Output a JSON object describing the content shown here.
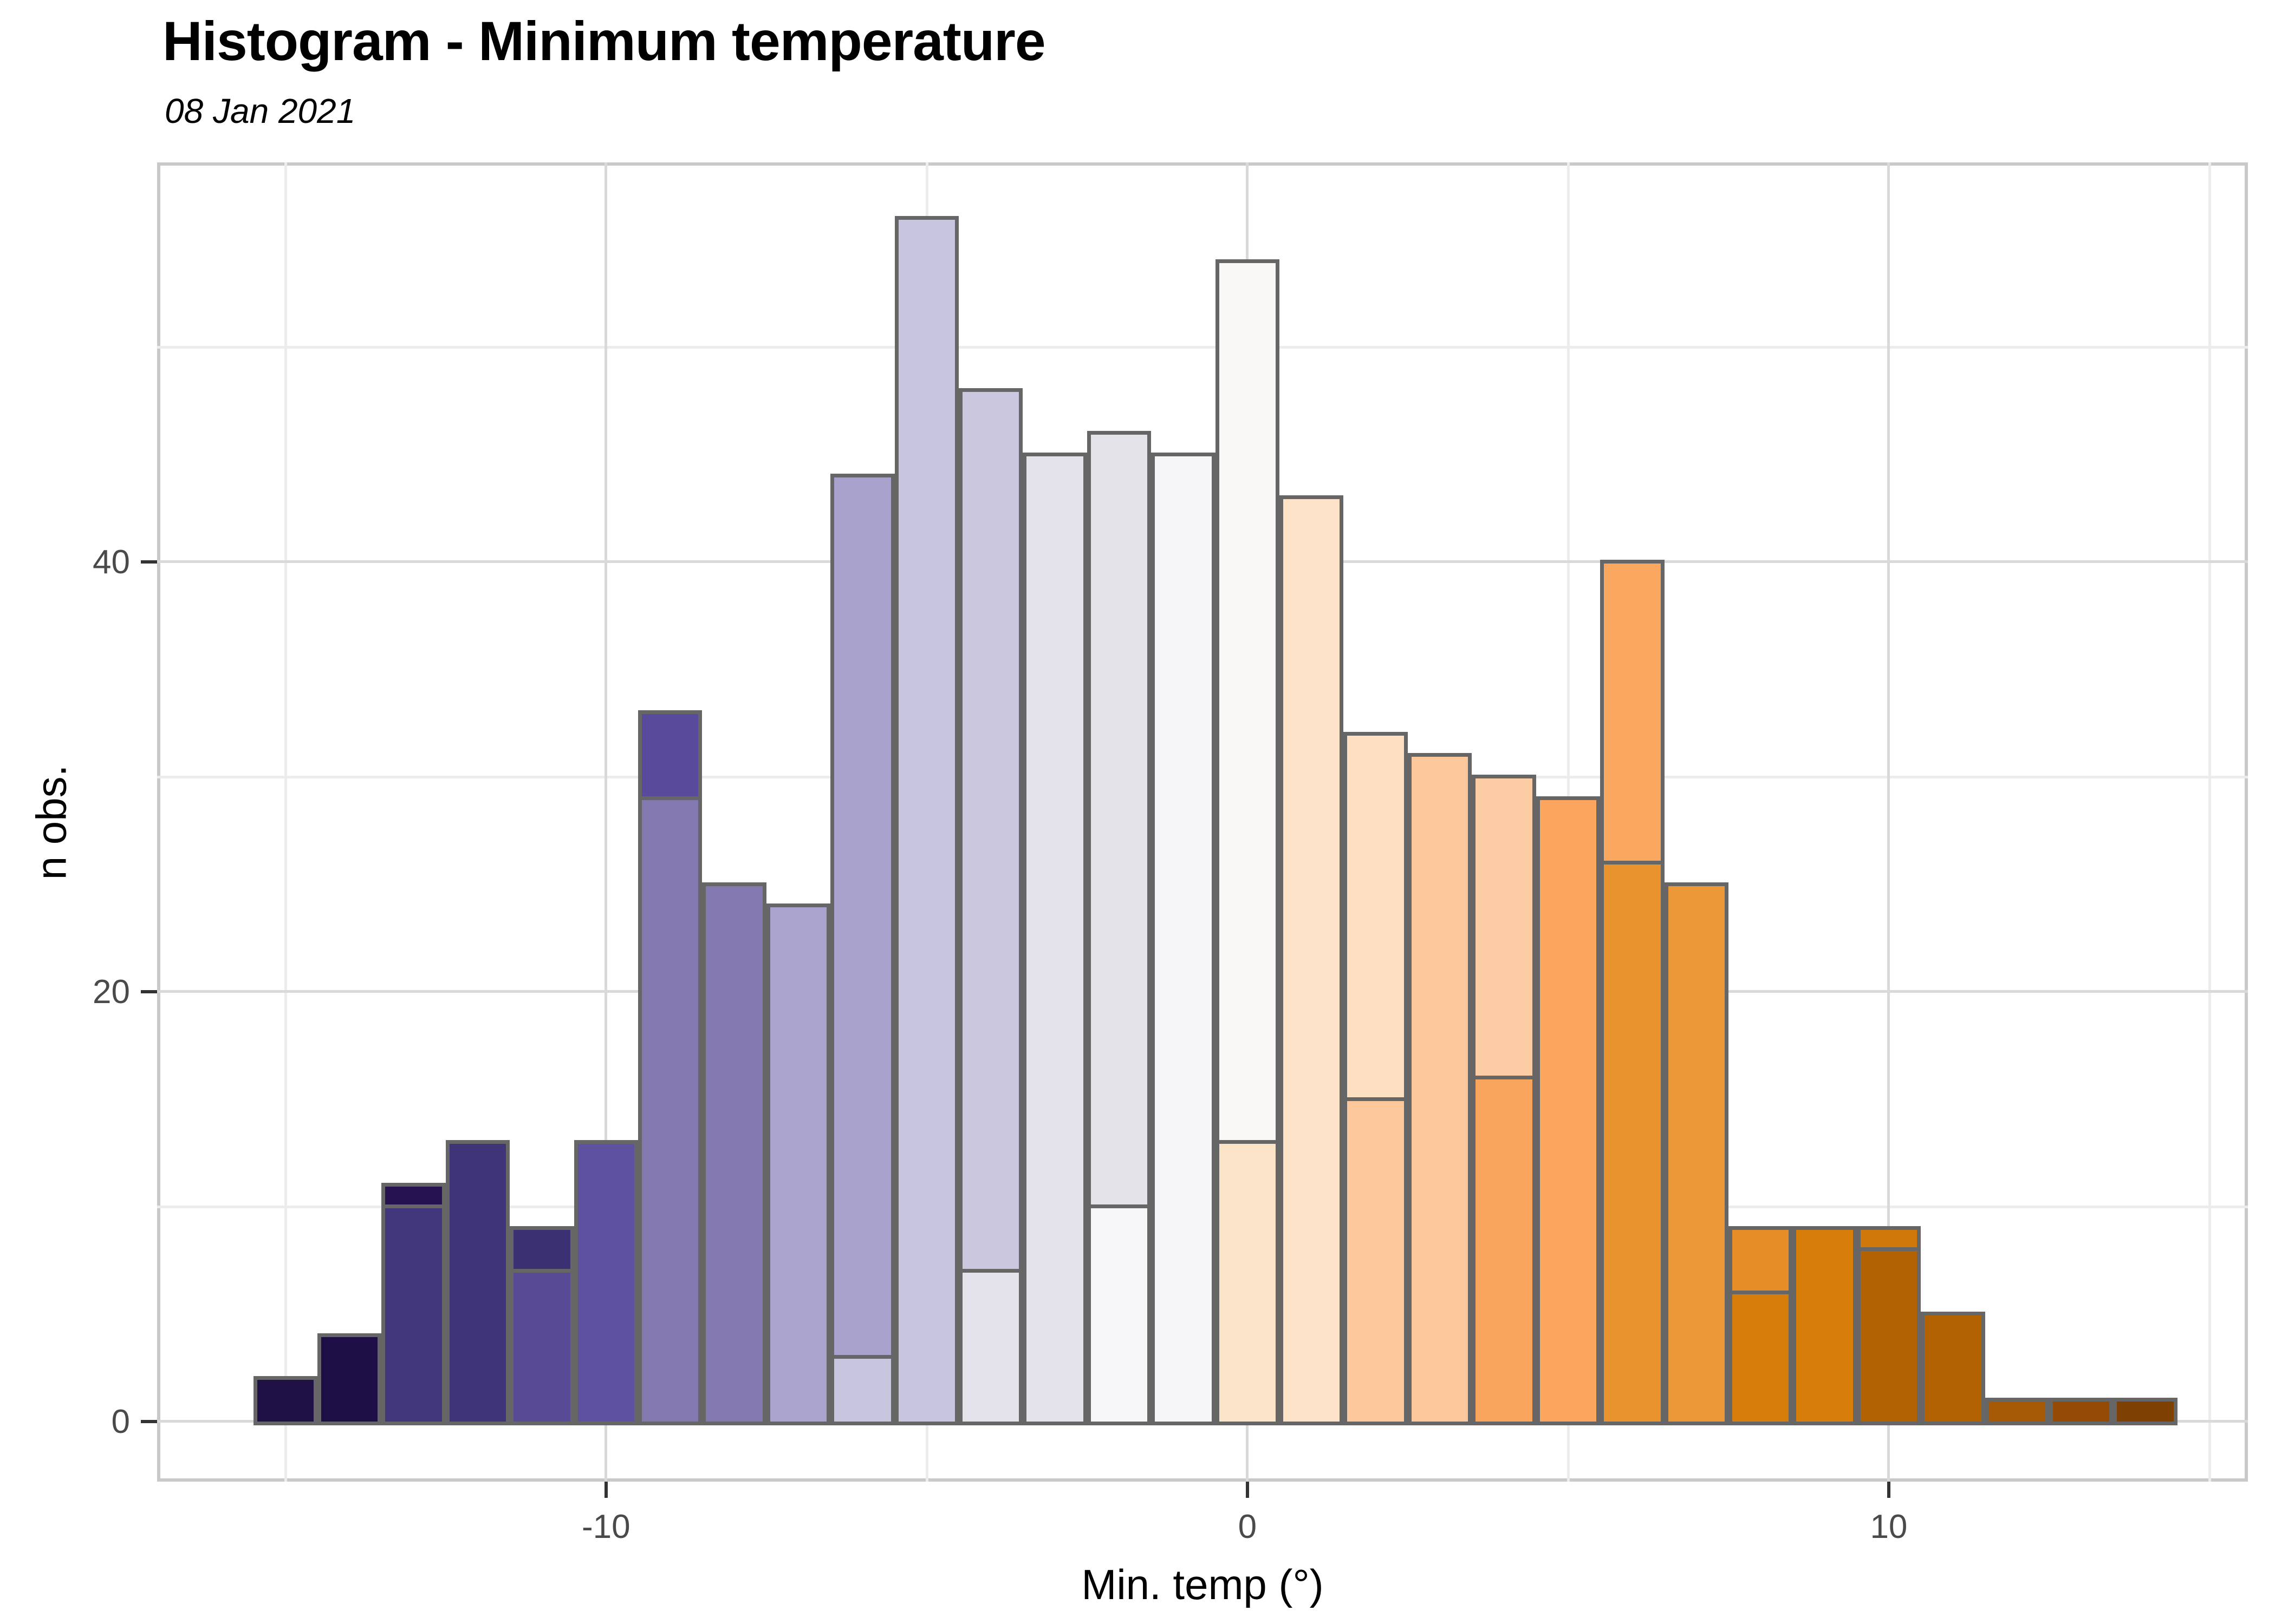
{
  "chart_data": {
    "type": "bar",
    "title": "Histogram - Minimum temperature",
    "subtitle": "08 Jan 2021",
    "xlabel": "Min. temp (°)",
    "ylabel": "n obs.",
    "xlim": [
      -17.0,
      15.6
    ],
    "ylim": [
      -2.8,
      58.6
    ],
    "bin_width": 1,
    "grid": {
      "x_major": [
        -10,
        0,
        10
      ],
      "x_minor": [
        -15,
        -5,
        5,
        15
      ],
      "y_major": [
        0,
        20,
        40
      ],
      "y_minor": [
        10,
        30,
        50
      ]
    },
    "x_ticks": [
      {
        "value": -10,
        "label": "-10"
      },
      {
        "value": 0,
        "label": "0"
      },
      {
        "value": 10,
        "label": "10"
      }
    ],
    "y_ticks": [
      {
        "value": 0,
        "label": "0"
      },
      {
        "value": 20,
        "label": "20"
      },
      {
        "value": 40,
        "label": "40"
      }
    ],
    "legend_position": "none",
    "bins_note": "Each bin may show a shorter overlay bar drawn in front (overlay_count/overlay_fill); the taller back bar color shows above it.",
    "bins": [
      {
        "x": -15,
        "count": 2,
        "fill": "#1f1145",
        "overlay_count": null,
        "overlay_fill": null
      },
      {
        "x": -14,
        "count": 4,
        "fill": "#1d0f45",
        "overlay_count": null,
        "overlay_fill": null
      },
      {
        "x": -13,
        "count": 11,
        "fill": "#251150",
        "overlay_count": 10,
        "overlay_fill": "#413679"
      },
      {
        "x": -12,
        "count": 13,
        "fill": "#3f3478",
        "overlay_count": null,
        "overlay_fill": null
      },
      {
        "x": -11,
        "count": 9,
        "fill": "#3b3071",
        "overlay_count": 7,
        "overlay_fill": "#584a94"
      },
      {
        "x": -10,
        "count": 13,
        "fill": "#5e51a0",
        "overlay_count": null,
        "overlay_fill": null
      },
      {
        "x": -9,
        "count": 33,
        "fill": "#5a4a9c",
        "overlay_count": 29,
        "overlay_fill": "#8478b1"
      },
      {
        "x": -8,
        "count": 25,
        "fill": "#8478b1",
        "overlay_count": null,
        "overlay_fill": null
      },
      {
        "x": -7,
        "count": 24,
        "fill": "#aaa3cd",
        "overlay_count": null,
        "overlay_fill": null
      },
      {
        "x": -6,
        "count": 44,
        "fill": "#a9a2cc",
        "overlay_count": 3,
        "overlay_fill": "#c8c5de"
      },
      {
        "x": -5,
        "count": 56,
        "fill": "#c8c5de",
        "overlay_count": null,
        "overlay_fill": null
      },
      {
        "x": -4,
        "count": 48,
        "fill": "#cac7de",
        "overlay_count": 7,
        "overlay_fill": "#e4e3ec"
      },
      {
        "x": -3,
        "count": 45,
        "fill": "#e4e3ec",
        "overlay_count": null,
        "overlay_fill": null
      },
      {
        "x": -2,
        "count": 46,
        "fill": "#e4e3ea",
        "overlay_count": 10,
        "overlay_fill": "#f7f6f9"
      },
      {
        "x": -1,
        "count": 45,
        "fill": "#f6f5f8",
        "overlay_count": null,
        "overlay_fill": null
      },
      {
        "x": 0,
        "count": 54,
        "fill": "#f9f8f6",
        "overlay_count": 13,
        "overlay_fill": "#fce4c8"
      },
      {
        "x": 1,
        "count": 43,
        "fill": "#fde3c7",
        "overlay_count": null,
        "overlay_fill": null
      },
      {
        "x": 2,
        "count": 32,
        "fill": "#fde0c2",
        "overlay_count": 15,
        "overlay_fill": "#fcc79a"
      },
      {
        "x": 3,
        "count": 31,
        "fill": "#fcc89b",
        "overlay_count": null,
        "overlay_fill": null
      },
      {
        "x": 4,
        "count": 30,
        "fill": "#fccda4",
        "overlay_count": 16,
        "overlay_fill": "#faa55e"
      },
      {
        "x": 5,
        "count": 29,
        "fill": "#fba55e",
        "overlay_count": null,
        "overlay_fill": null
      },
      {
        "x": 6,
        "count": 40,
        "fill": "#faa75f",
        "overlay_count": 26,
        "overlay_fill": "#e9932f"
      },
      {
        "x": 7,
        "count": 25,
        "fill": "#ec9738",
        "overlay_count": null,
        "overlay_fill": null
      },
      {
        "x": 8,
        "count": 9,
        "fill": "#e78d28",
        "overlay_count": 6,
        "overlay_fill": "#d67d0a"
      },
      {
        "x": 9,
        "count": 9,
        "fill": "#d67d0a",
        "overlay_count": null,
        "overlay_fill": null
      },
      {
        "x": 10,
        "count": 9,
        "fill": "#d0790a",
        "overlay_count": 8,
        "overlay_fill": "#b36203"
      },
      {
        "x": 11,
        "count": 5,
        "fill": "#b26103",
        "overlay_count": null,
        "overlay_fill": null
      },
      {
        "x": 12,
        "count": 1,
        "fill": "#a65a05",
        "overlay_count": null,
        "overlay_fill": null
      },
      {
        "x": 13,
        "count": 1,
        "fill": "#944b04",
        "overlay_count": null,
        "overlay_fill": null
      },
      {
        "x": 14,
        "count": 1,
        "fill": "#7e4003",
        "overlay_count": null,
        "overlay_fill": null
      }
    ],
    "colors": {
      "bar_stroke": "#666666",
      "panel_border": "#c9c9c9",
      "grid_major": "#d9d9d9",
      "grid_minor": "#ececec",
      "tick_mark": "#333333",
      "tick_label": "#4a4a4a",
      "text": "#000000",
      "background": "#ffffff"
    }
  }
}
